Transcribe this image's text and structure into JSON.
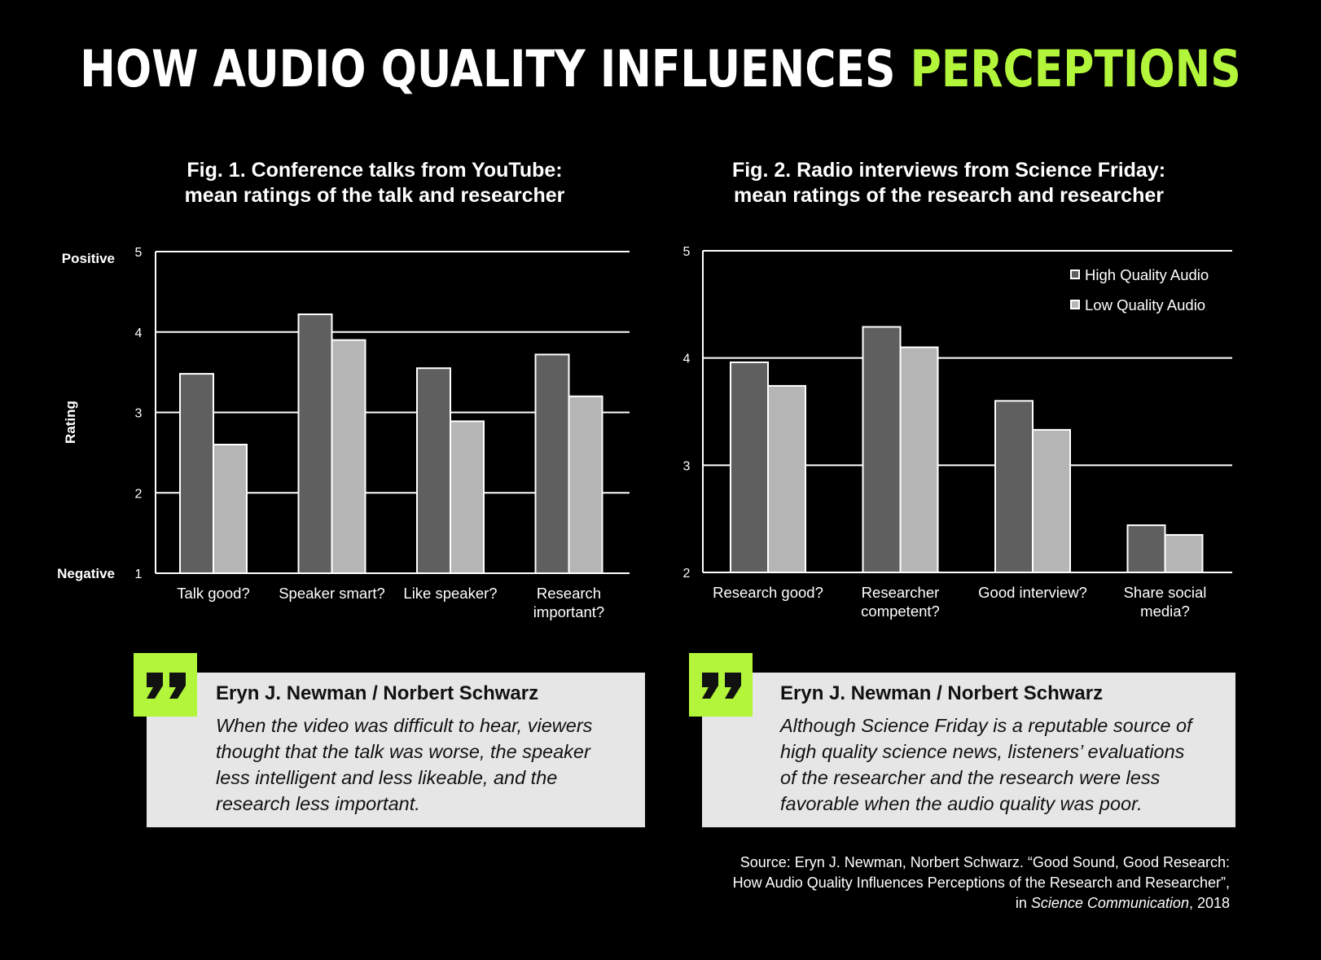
{
  "headline": {
    "main": "HOW AUDIO QUALITY INFLUENCES",
    "accent": "PERCEPTIONS"
  },
  "colors": {
    "background": "#000000",
    "accent": "#b2f53a",
    "high_quality": "#5f5f5f",
    "low_quality": "#b5b5b5",
    "quote_box": "#e6e6e6"
  },
  "chart_data": [
    {
      "type": "bar",
      "title": [
        "Fig. 1. Conference talks from YouTube:",
        "mean ratings of the talk and researcher"
      ],
      "ylabel": "Rating",
      "ylim": [
        1,
        5
      ],
      "yticks": [
        "1",
        "2",
        "3",
        "4",
        "5"
      ],
      "y_end_labels": {
        "low": "Negative",
        "high": "Positive"
      },
      "grid": true,
      "categories": [
        [
          "Talk good?"
        ],
        [
          "Speaker smart?"
        ],
        [
          "Like speaker?"
        ],
        [
          "Research",
          "important?"
        ]
      ],
      "series": [
        {
          "name": "High Quality Audio",
          "values": [
            3.48,
            4.22,
            3.55,
            3.72
          ]
        },
        {
          "name": "Low Quality Audio",
          "values": [
            2.6,
            3.9,
            2.89,
            3.2
          ]
        }
      ]
    },
    {
      "type": "bar",
      "title": [
        "Fig. 2. Radio interviews from Science Friday:",
        "mean ratings of the research and researcher"
      ],
      "ylim": [
        2,
        5
      ],
      "yticks": [
        "2",
        "3",
        "4",
        "5"
      ],
      "grid": true,
      "legend": {
        "position": "top-right",
        "entries": [
          "High Quality Audio",
          "Low Quality Audio"
        ]
      },
      "categories": [
        [
          "Research good?"
        ],
        [
          "Researcher",
          "competent?"
        ],
        [
          "Good interview?"
        ],
        [
          "Share social",
          "media?"
        ]
      ],
      "series": [
        {
          "name": "High Quality Audio",
          "values": [
            3.96,
            4.29,
            3.6,
            2.44
          ]
        },
        {
          "name": "Low Quality Audio",
          "values": [
            3.74,
            4.1,
            3.33,
            2.35
          ]
        }
      ]
    }
  ],
  "quotes": [
    {
      "author": "Eryn J. Newman / Norbert Schwarz",
      "lines": [
        "When the video was difficult to hear, viewers",
        "thought that the talk was worse, the speaker",
        "less intelligent and less likeable, and the",
        "research less important."
      ]
    },
    {
      "author": "Eryn J. Newman / Norbert Schwarz",
      "lines": [
        "Although Science Friday is a reputable source of",
        "high quality science news, listeners’ evaluations",
        "of the researcher and the research were less",
        "favorable when the audio quality was poor."
      ]
    }
  ],
  "source": {
    "line1": "Source:  Eryn J. Newman, Norbert Schwarz. “Good Sound, Good Research:",
    "line2": "How Audio Quality Influences Perceptions of the Research and Researcher”,",
    "line3_prefix": "in ",
    "line3_journal": "Science Communication",
    "line3_suffix": ", 2018"
  }
}
